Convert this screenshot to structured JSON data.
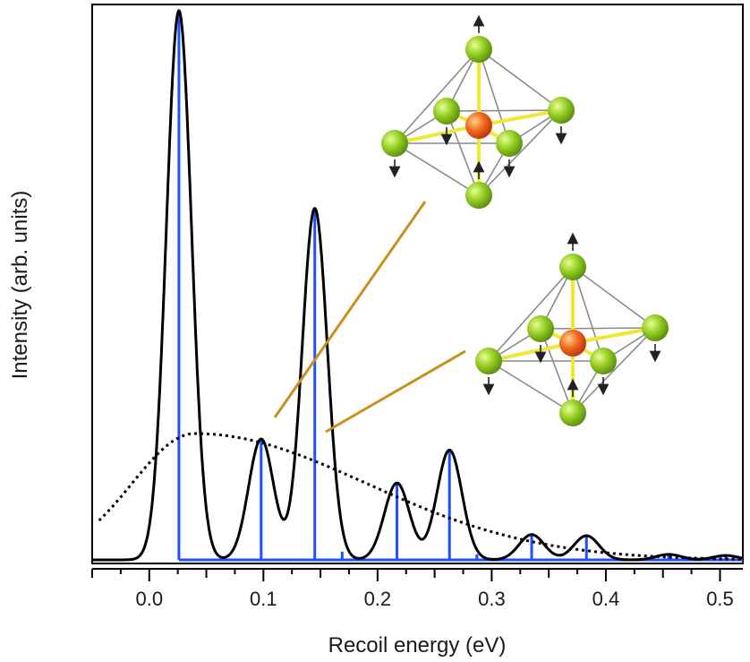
{
  "chart_data": {
    "type": "line",
    "xlabel": "Recoil energy (eV)",
    "ylabel": "Intensity (arb. units)",
    "xlim": [
      -0.05,
      0.52
    ],
    "ylim": [
      0,
      1.0
    ],
    "x_ticks": [
      0.0,
      0.1,
      0.2,
      0.3,
      0.4,
      0.5
    ],
    "x_tick_labels": [
      "0.0",
      "0.1",
      "0.2",
      "0.3",
      "0.4",
      "0.5"
    ],
    "y_ticks_visible": false,
    "grid": false,
    "series": [
      {
        "style": "solid-black-curve",
        "color": "#000000",
        "peaks": [
          {
            "x": 0.026,
            "height": 1.0,
            "width": 0.011
          },
          {
            "x": 0.098,
            "height": 0.22,
            "width": 0.011
          },
          {
            "x": 0.145,
            "height": 0.64,
            "width": 0.011
          },
          {
            "x": 0.217,
            "height": 0.14,
            "width": 0.011
          },
          {
            "x": 0.263,
            "height": 0.2,
            "width": 0.011
          },
          {
            "x": 0.335,
            "height": 0.046,
            "width": 0.011
          },
          {
            "x": 0.383,
            "height": 0.044,
            "width": 0.011
          },
          {
            "x": 0.455,
            "height": 0.01,
            "width": 0.011
          },
          {
            "x": 0.505,
            "height": 0.008,
            "width": 0.011
          }
        ]
      },
      {
        "style": "dotted-black-envelope",
        "color": "#000000",
        "center": 0.04,
        "height": 0.23,
        "sigma_left": 0.055,
        "sigma_right": 0.15
      },
      {
        "style": "blue-stick-spectrum",
        "color": "#1f4fff",
        "x": [
          0.026,
          0.098,
          0.145,
          0.169,
          0.217,
          0.263,
          0.287,
          0.335,
          0.383,
          0.455,
          0.505
        ],
        "values": [
          1.0,
          0.22,
          0.64,
          0.015,
          0.14,
          0.2,
          0.01,
          0.046,
          0.044,
          0.012,
          0.008
        ]
      }
    ],
    "annotations": [
      {
        "type": "connector-line",
        "color": "#c8901e",
        "from_peak_x": 0.098,
        "to": "upper molecule inset"
      },
      {
        "type": "connector-line",
        "color": "#c8901e",
        "from_peak_x": 0.145,
        "to": "lower molecule inset"
      },
      {
        "type": "molecule-inset",
        "description_id": "octahedral-vibration-mode-1"
      },
      {
        "type": "molecule-inset",
        "description_id": "octahedral-vibration-mode-2"
      }
    ]
  },
  "colors": {
    "center_atom": "#e8541e",
    "ligand_atom": "#8cc81e",
    "bond_highlight": "#f0e838",
    "cage_edge": "#8a8a8a",
    "arrow": "#222222"
  }
}
